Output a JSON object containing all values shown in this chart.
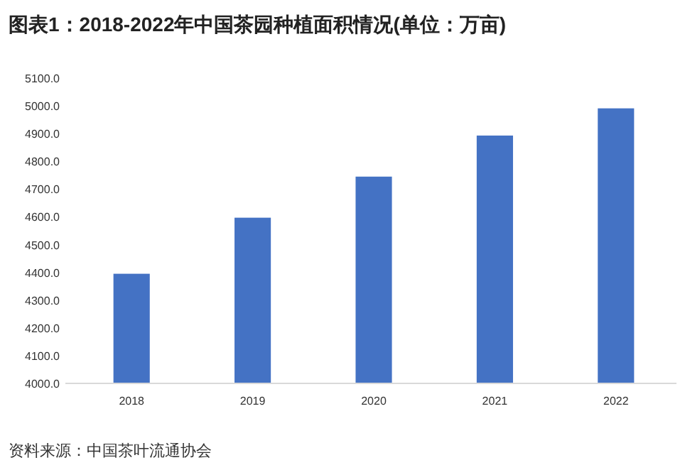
{
  "chart_data": {
    "type": "bar",
    "title": "图表1：2018-2022年中国茶园种植面积情况(单位：万亩)",
    "categories": [
      "2018",
      "2019",
      "2020",
      "2021",
      "2022"
    ],
    "values": [
      4395,
      4597,
      4745,
      4893,
      4991
    ],
    "color": "#4472c4",
    "ylim": [
      4000,
      5100
    ],
    "yticks": [
      {
        "value": 4000,
        "label": "4000.0"
      },
      {
        "value": 4100,
        "label": "4100.0"
      },
      {
        "value": 4200,
        "label": "4200.0"
      },
      {
        "value": 4300,
        "label": "4300.0"
      },
      {
        "value": 4400,
        "label": "4400.0"
      },
      {
        "value": 4500,
        "label": "4500.0"
      },
      {
        "value": 4600,
        "label": "4600.0"
      },
      {
        "value": 4700,
        "label": "4700.0"
      },
      {
        "value": 4800,
        "label": "4800.0"
      },
      {
        "value": 4900,
        "label": "4900.0"
      },
      {
        "value": 5000,
        "label": "5000.0"
      },
      {
        "value": 5100,
        "label": "5100.0"
      }
    ],
    "grid": false,
    "annotations": [
      "资料来源：中国茶叶流通协会"
    ]
  }
}
